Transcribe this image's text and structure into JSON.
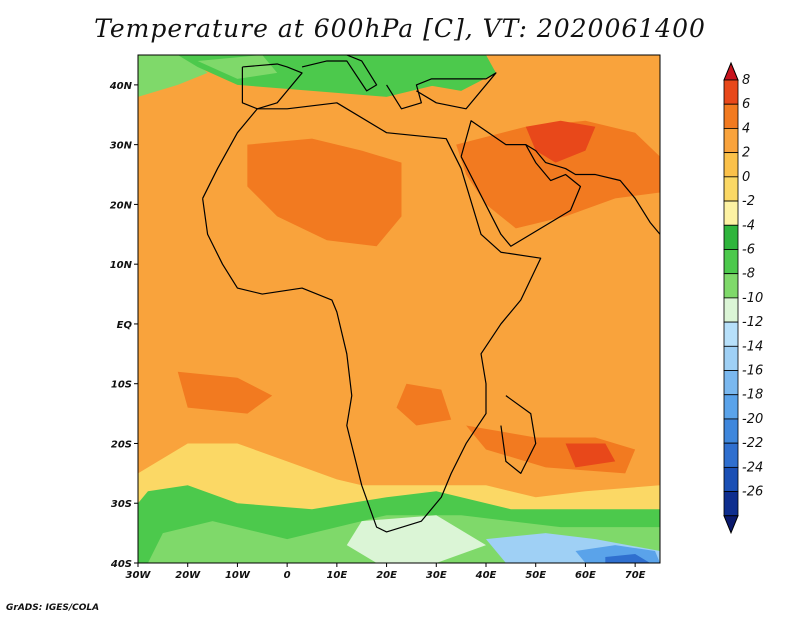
{
  "title": "Temperature at 600hPa [C], VT: 2020061400",
  "credit": "GrADS: IGES/COLA",
  "map": {
    "lon_range": [
      -30,
      75
    ],
    "lat_range": [
      -40,
      45
    ],
    "lon_ticks": [
      "30W",
      "20W",
      "10W",
      "0",
      "10E",
      "20E",
      "30E",
      "40E",
      "50E",
      "60E",
      "70E"
    ],
    "lat_ticks": [
      "40N",
      "30N",
      "20N",
      "10N",
      "EQ",
      "10S",
      "20S",
      "30S",
      "40S"
    ],
    "background_level_color": "#f9a33c",
    "regions": [
      {
        "name": "north-atlantic-cold",
        "color": "#7fd96a",
        "lonlat": [
          [
            -30,
            45
          ],
          [
            -20,
            45
          ],
          [
            -16,
            42
          ],
          [
            -22,
            40
          ],
          [
            -30,
            38
          ]
        ]
      },
      {
        "name": "mediterranean-green",
        "color": "#4cc94c",
        "lonlat": [
          [
            -22,
            45
          ],
          [
            28,
            45
          ],
          [
            30,
            40
          ],
          [
            20,
            38
          ],
          [
            5,
            39
          ],
          [
            -10,
            40
          ],
          [
            -18,
            43
          ]
        ]
      },
      {
        "name": "iberia-light",
        "color": "#7fd96a",
        "lonlat": [
          [
            -18,
            44
          ],
          [
            -5,
            45
          ],
          [
            -2,
            42
          ],
          [
            -10,
            41
          ]
        ]
      },
      {
        "name": "east-med-green",
        "color": "#4cc94c",
        "lonlat": [
          [
            28,
            45
          ],
          [
            40,
            45
          ],
          [
            42,
            42
          ],
          [
            35,
            39
          ],
          [
            28,
            40
          ]
        ]
      },
      {
        "name": "sahara-warm",
        "color": "#f27a20",
        "lonlat": [
          [
            -8,
            30
          ],
          [
            5,
            31
          ],
          [
            15,
            29
          ],
          [
            23,
            27
          ],
          [
            23,
            18
          ],
          [
            18,
            13
          ],
          [
            8,
            14
          ],
          [
            -2,
            18
          ],
          [
            -8,
            23
          ]
        ]
      },
      {
        "name": "arabia-warm",
        "color": "#f27a20",
        "lonlat": [
          [
            34,
            30
          ],
          [
            48,
            33
          ],
          [
            60,
            34
          ],
          [
            70,
            32
          ],
          [
            75,
            28
          ],
          [
            75,
            22
          ],
          [
            66,
            21
          ],
          [
            56,
            18
          ],
          [
            46,
            16
          ],
          [
            40,
            20
          ],
          [
            36,
            25
          ]
        ]
      },
      {
        "name": "iran-hot",
        "color": "#e8481a",
        "lonlat": [
          [
            48,
            33
          ],
          [
            55,
            34
          ],
          [
            62,
            33
          ],
          [
            60,
            29
          ],
          [
            54,
            27
          ],
          [
            50,
            29
          ]
        ]
      },
      {
        "name": "southeast-atlantic-warm",
        "color": "#f27a20",
        "lonlat": [
          [
            -22,
            -8
          ],
          [
            -10,
            -9
          ],
          [
            -3,
            -12
          ],
          [
            -8,
            -15
          ],
          [
            -20,
            -14
          ]
        ]
      },
      {
        "name": "zambia-warm",
        "color": "#f27a20",
        "lonlat": [
          [
            24,
            -10
          ],
          [
            31,
            -11
          ],
          [
            33,
            -16
          ],
          [
            26,
            -17
          ],
          [
            22,
            -14
          ]
        ]
      },
      {
        "name": "indian-ocean-warm",
        "color": "#f27a20",
        "lonlat": [
          [
            36,
            -17
          ],
          [
            50,
            -19
          ],
          [
            62,
            -19
          ],
          [
            70,
            -21
          ],
          [
            68,
            -25
          ],
          [
            52,
            -24
          ],
          [
            40,
            -21
          ]
        ]
      },
      {
        "name": "reunion-hot",
        "color": "#e8481a",
        "lonlat": [
          [
            56,
            -20
          ],
          [
            64,
            -20
          ],
          [
            66,
            -23
          ],
          [
            58,
            -24
          ]
        ]
      },
      {
        "name": "south-light-band",
        "color": "#fbd865",
        "lonlat": [
          [
            -30,
            -25
          ],
          [
            -20,
            -20
          ],
          [
            -10,
            -20
          ],
          [
            0,
            -23
          ],
          [
            10,
            -26
          ],
          [
            15,
            -27
          ],
          [
            25,
            -27
          ],
          [
            40,
            -27
          ],
          [
            50,
            -29
          ],
          [
            60,
            -28
          ],
          [
            75,
            -27
          ],
          [
            75,
            -40
          ],
          [
            -30,
            -40
          ]
        ]
      },
      {
        "name": "south-green",
        "color": "#4cc94c",
        "lonlat": [
          [
            -28,
            -28
          ],
          [
            -20,
            -27
          ],
          [
            -10,
            -30
          ],
          [
            5,
            -31
          ],
          [
            20,
            -29
          ],
          [
            30,
            -28
          ],
          [
            45,
            -31
          ],
          [
            75,
            -31
          ],
          [
            75,
            -40
          ],
          [
            -30,
            -40
          ],
          [
            -30,
            -30
          ]
        ]
      },
      {
        "name": "south-lightgreen",
        "color": "#7fd96a",
        "lonlat": [
          [
            -25,
            -35
          ],
          [
            -15,
            -33
          ],
          [
            0,
            -36
          ],
          [
            20,
            -32
          ],
          [
            35,
            -32
          ],
          [
            55,
            -34
          ],
          [
            75,
            -34
          ],
          [
            75,
            -40
          ],
          [
            -28,
            -40
          ]
        ]
      },
      {
        "name": "south-pale",
        "color": "#dbf5d6",
        "lonlat": [
          [
            15,
            -33
          ],
          [
            30,
            -32
          ],
          [
            40,
            -37
          ],
          [
            30,
            -40
          ],
          [
            18,
            -40
          ],
          [
            12,
            -37
          ]
        ]
      },
      {
        "name": "south-lightblue",
        "color": "#9fd0f5",
        "lonlat": [
          [
            40,
            -36
          ],
          [
            52,
            -35
          ],
          [
            62,
            -36
          ],
          [
            75,
            -38
          ],
          [
            75,
            -40
          ],
          [
            44,
            -40
          ]
        ]
      },
      {
        "name": "south-blue",
        "color": "#5aa3ea",
        "lonlat": [
          [
            58,
            -38
          ],
          [
            66,
            -37
          ],
          [
            74,
            -38
          ],
          [
            75,
            -40
          ],
          [
            60,
            -40
          ]
        ]
      },
      {
        "name": "south-darkblue",
        "color": "#2f6fcf",
        "lonlat": [
          [
            64,
            -39
          ],
          [
            70,
            -38.5
          ],
          [
            73,
            -40
          ],
          [
            64,
            -40
          ]
        ]
      }
    ],
    "coastline": [
      [
        [
          -17,
          21
        ],
        [
          -16,
          15
        ],
        [
          -13,
          10
        ],
        [
          -10,
          6
        ],
        [
          -5,
          5
        ],
        [
          3,
          6
        ],
        [
          9,
          4
        ],
        [
          10,
          2
        ],
        [
          12,
          -5
        ],
        [
          13,
          -12
        ],
        [
          12,
          -17
        ],
        [
          15,
          -27
        ],
        [
          18,
          -34
        ],
        [
          20,
          -34.8
        ],
        [
          27,
          -33
        ],
        [
          31,
          -29
        ],
        [
          33,
          -25
        ],
        [
          36,
          -20
        ],
        [
          40,
          -15
        ],
        [
          40,
          -10
        ],
        [
          39,
          -5
        ],
        [
          43,
          0
        ],
        [
          47,
          4
        ],
        [
          51,
          11
        ],
        [
          43,
          12
        ],
        [
          39,
          15
        ],
        [
          35,
          26
        ],
        [
          32,
          31
        ],
        [
          20,
          32
        ],
        [
          10,
          37
        ],
        [
          0,
          36
        ],
        [
          -6,
          36
        ],
        [
          -10,
          32
        ],
        [
          -14,
          26
        ],
        [
          -17,
          21
        ]
      ],
      [
        [
          44,
          -12
        ],
        [
          49,
          -15
        ],
        [
          50,
          -20
        ],
        [
          47,
          -25
        ],
        [
          44,
          -23
        ],
        [
          43,
          -17
        ]
      ],
      [
        [
          35,
          28
        ],
        [
          43,
          15
        ],
        [
          45,
          13
        ],
        [
          53,
          17
        ],
        [
          57,
          19
        ],
        [
          59,
          23
        ],
        [
          56,
          25
        ],
        [
          53,
          24
        ],
        [
          50,
          27
        ],
        [
          48,
          30
        ],
        [
          44,
          30
        ],
        [
          37,
          34
        ],
        [
          35,
          28
        ]
      ],
      [
        [
          48,
          30
        ],
        [
          50,
          29
        ],
        [
          52,
          27
        ],
        [
          56,
          26
        ],
        [
          58,
          25
        ],
        [
          62,
          25
        ],
        [
          67,
          24
        ],
        [
          70,
          21
        ],
        [
          73,
          17
        ],
        [
          75,
          15
        ]
      ],
      [
        [
          -9,
          43
        ],
        [
          -9,
          37
        ],
        [
          -6,
          36
        ],
        [
          -2,
          37
        ],
        [
          0,
          39
        ],
        [
          3,
          42
        ],
        [
          0,
          43
        ],
        [
          -2,
          43.5
        ],
        [
          -9,
          43
        ]
      ],
      [
        [
          3,
          43
        ],
        [
          8,
          44
        ],
        [
          12,
          44
        ],
        [
          16,
          39
        ],
        [
          18,
          40
        ],
        [
          15,
          44
        ],
        [
          12,
          45
        ]
      ],
      [
        [
          20,
          40
        ],
        [
          23,
          36
        ],
        [
          27,
          37
        ],
        [
          26,
          40
        ],
        [
          29,
          41
        ],
        [
          40,
          41
        ],
        [
          42,
          42
        ],
        [
          36,
          36
        ],
        [
          30,
          37
        ],
        [
          26,
          39
        ]
      ]
    ],
    "colorbar": {
      "labels": [
        "8",
        "6",
        "4",
        "2",
        "0",
        "-2",
        "-4",
        "-6",
        "-8",
        "-10",
        "-12",
        "-14",
        "-16",
        "-18",
        "-20",
        "-22",
        "-24",
        "-26"
      ],
      "colors": [
        "#c8141e",
        "#e8481a",
        "#f27a20",
        "#f9a33c",
        "#fbc14a",
        "#fbd865",
        "#fdf2a3",
        "#2fb53c",
        "#4cc94c",
        "#7fd96a",
        "#dbf5d6",
        "#b7e0fa",
        "#9fd0f5",
        "#7ab8ef",
        "#5aa3ea",
        "#3f87dc",
        "#2f6fcf",
        "#1a4fb5",
        "#0e2e8f",
        "#0a1a6e"
      ]
    }
  }
}
